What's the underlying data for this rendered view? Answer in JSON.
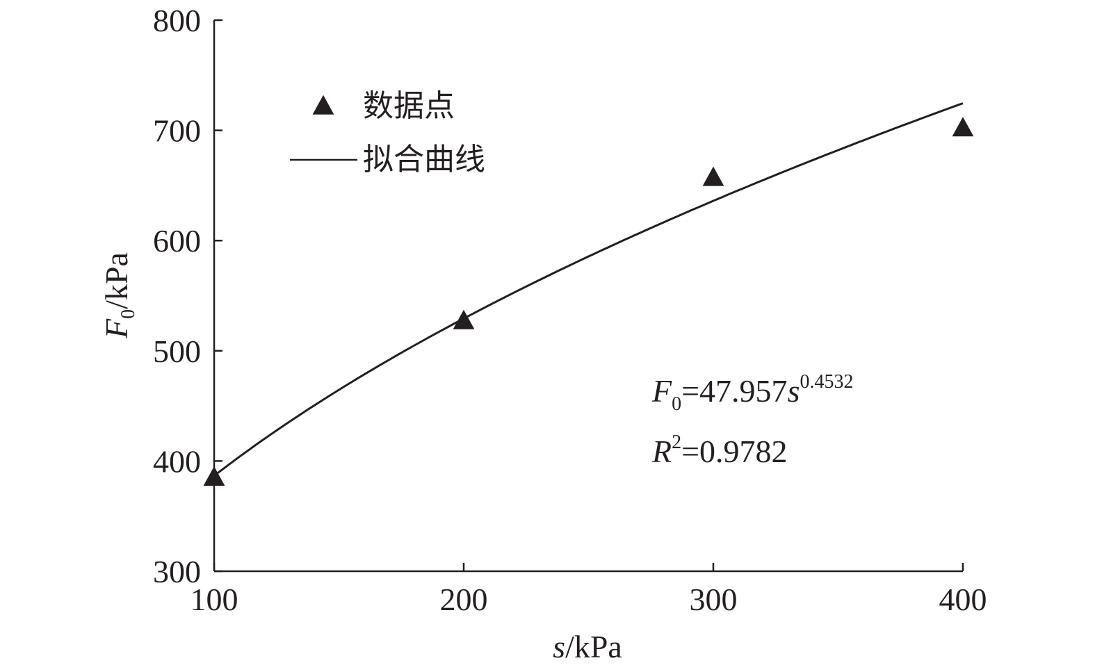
{
  "chart_data": {
    "type": "scatter",
    "xlabel": {
      "var": "s",
      "unit": "/kPa"
    },
    "ylabel": {
      "var": "F",
      "sub": "0",
      "unit": "/kPa"
    },
    "xlim": [
      100,
      400
    ],
    "ylim": [
      300,
      800
    ],
    "xticks": [
      100,
      200,
      300,
      400
    ],
    "yticks": [
      300,
      400,
      500,
      600,
      700,
      800
    ],
    "series": [
      {
        "name": "数据点",
        "marker": "triangle",
        "x": [
          100,
          200,
          300,
          400
        ],
        "y": [
          385,
          527,
          657,
          702
        ]
      },
      {
        "name": "拟合曲线",
        "kind": "fit",
        "equation": {
          "a": 47.957,
          "b": 0.4532
        }
      }
    ],
    "annotations": {
      "eq_lhs": "F",
      "eq_sub": "0",
      "eq_mid": "=47.957",
      "eq_var": "s",
      "eq_sup": "0.4532",
      "r2_var": "R",
      "r2_sup": "2",
      "r2_val": "=0.9782"
    },
    "legend_position": "top-left",
    "colors": {
      "ink": "#231f20"
    }
  }
}
